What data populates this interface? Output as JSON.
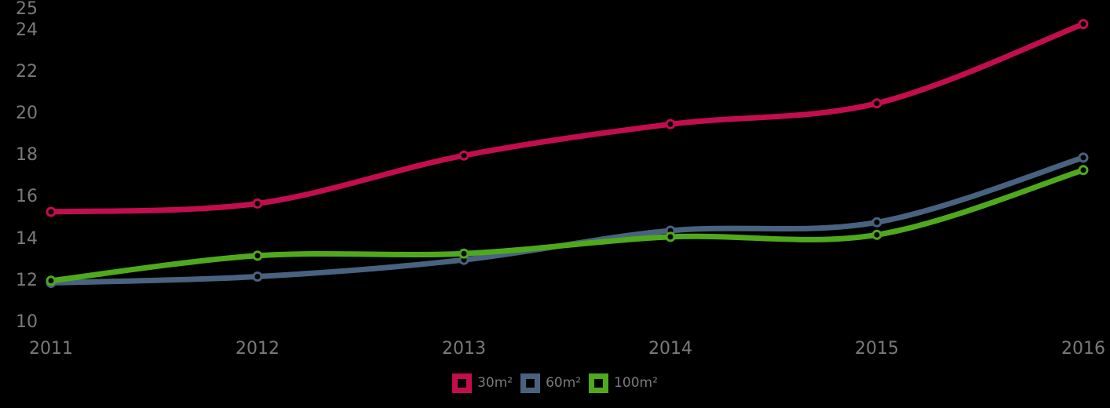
{
  "chart_data": {
    "type": "line",
    "title": "",
    "xlabel": "",
    "ylabel": "",
    "x": [
      "2011",
      "2012",
      "2013",
      "2014",
      "2015",
      "2016"
    ],
    "series": [
      {
        "name": "30m²",
        "color": "#c20d4e",
        "values": [
          15.3,
          15.7,
          18.0,
          19.5,
          20.5,
          24.3
        ]
      },
      {
        "name": "60m²",
        "color": "#48627f",
        "values": [
          11.9,
          12.2,
          13.0,
          14.4,
          14.8,
          17.9
        ]
      },
      {
        "name": "100m²",
        "color": "#4fa91d",
        "values": [
          12.0,
          13.2,
          13.3,
          14.1,
          14.2,
          17.3
        ]
      }
    ],
    "ylim": [
      10,
      25
    ],
    "y_ticks": [
      25,
      24,
      22,
      20,
      18,
      16,
      14,
      12,
      10
    ],
    "grid": false,
    "line_style": "smoothed",
    "marker": "open-circle",
    "legend_position": "bottom"
  },
  "style": {
    "background": "#000000",
    "label_color": "#7a7a7a"
  }
}
